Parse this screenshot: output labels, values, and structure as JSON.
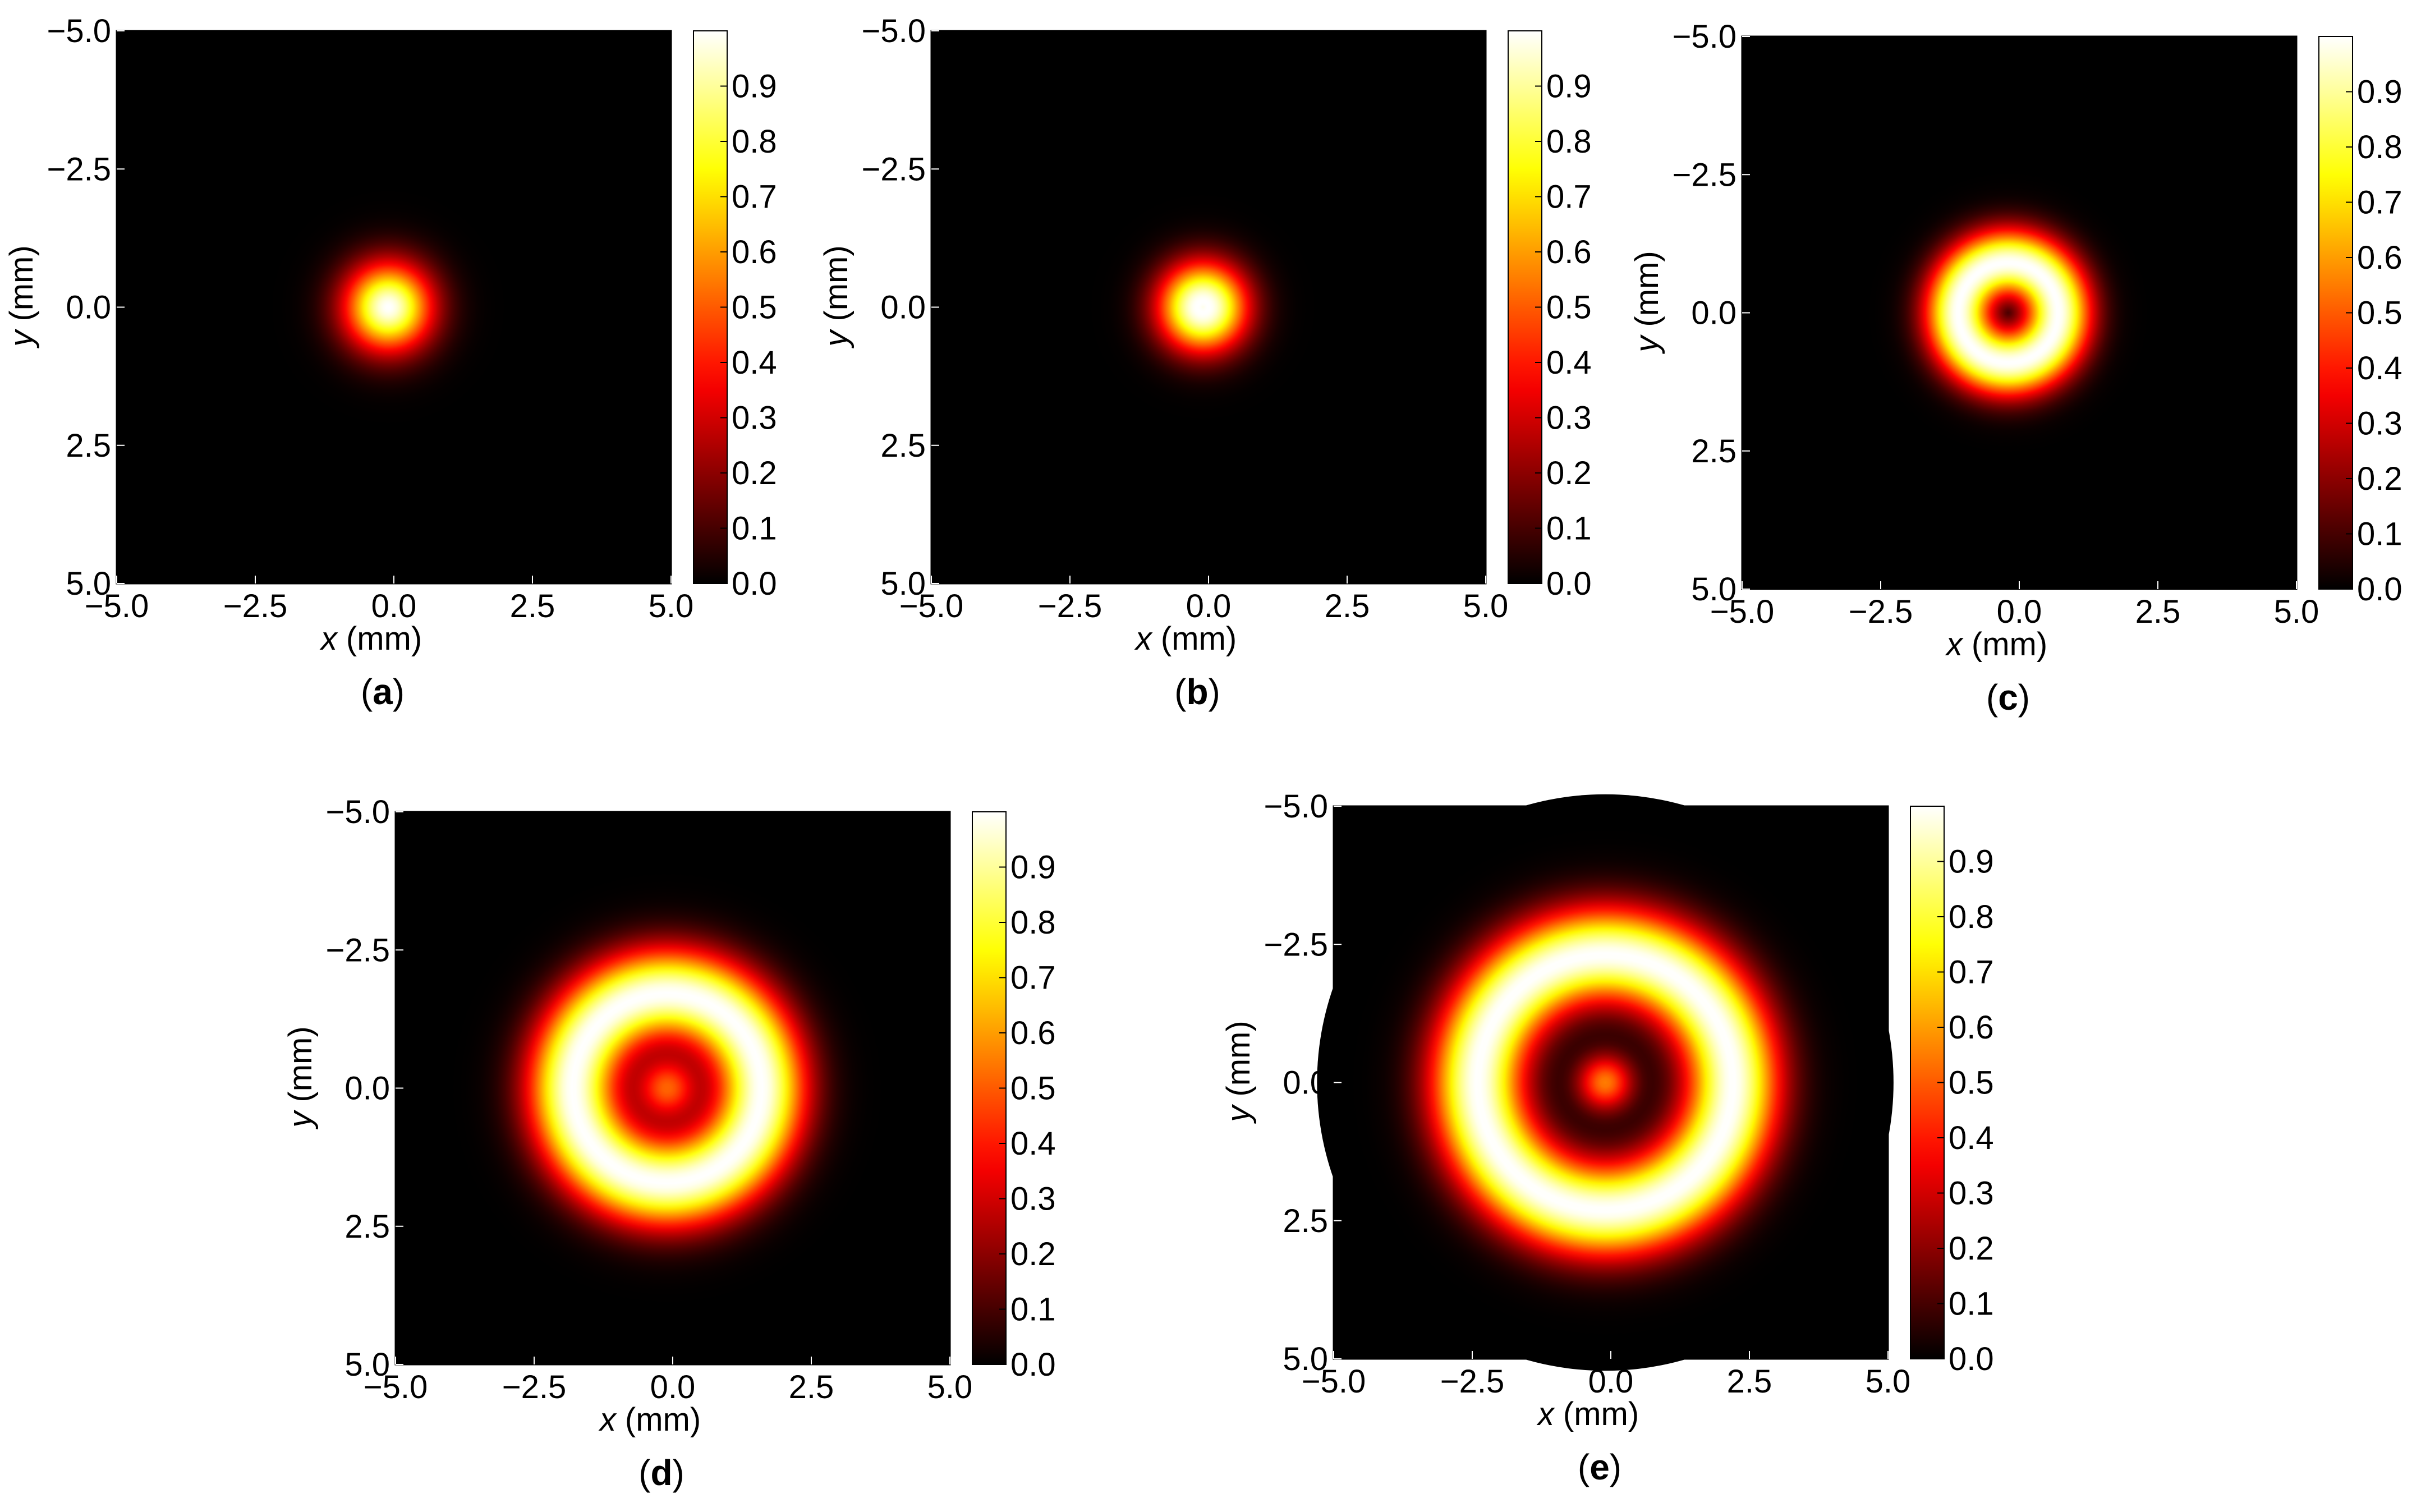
{
  "chart_data": [
    {
      "type": "heatmap",
      "panel_label": "a",
      "xlabel": "x (mm)",
      "ylabel": "y (mm)",
      "xlim": [
        -5.0,
        5.0
      ],
      "ylim": [
        -5.0,
        5.0
      ],
      "y_axis_inverted": true,
      "xticks": [
        "−5.0",
        "−2.5",
        "0.0",
        "2.5",
        "5.0"
      ],
      "yticks": [
        "−5.0",
        "−2.5",
        "0.0",
        "2.5",
        "5.0"
      ],
      "colorbar": {
        "colormap": "hot",
        "range": [
          0.0,
          1.0
        ],
        "ticks": [
          "0.0",
          "0.1",
          "0.2",
          "0.3",
          "0.4",
          "0.5",
          "0.6",
          "0.7",
          "0.8",
          "0.9"
        ]
      },
      "profile": {
        "shape": "gaussian spot",
        "center_mm": [
          -0.1,
          0.0
        ],
        "peak_radius_mm": 0.0,
        "width_mm": 1.1,
        "peak_value": 1.0
      }
    },
    {
      "type": "heatmap",
      "panel_label": "b",
      "xlabel": "x (mm)",
      "ylabel": "y (mm)",
      "xlim": [
        -5.0,
        5.0
      ],
      "ylim": [
        -5.0,
        5.0
      ],
      "y_axis_inverted": true,
      "xticks": [
        "−5.0",
        "−2.5",
        "0.0",
        "2.5",
        "5.0"
      ],
      "yticks": [
        "−5.0",
        "−2.5",
        "0.0",
        "2.5",
        "5.0"
      ],
      "colorbar": {
        "colormap": "hot",
        "range": [
          0.0,
          1.0
        ],
        "ticks": [
          "0.0",
          "0.1",
          "0.2",
          "0.3",
          "0.4",
          "0.5",
          "0.6",
          "0.7",
          "0.8",
          "0.9"
        ]
      },
      "profile": {
        "shape": "gaussian spot",
        "center_mm": [
          -0.1,
          0.0
        ],
        "peak_radius_mm": 0.1,
        "width_mm": 1.0,
        "peak_value": 1.0
      }
    },
    {
      "type": "heatmap",
      "panel_label": "c",
      "xlabel": "x (mm)",
      "ylabel": "y (mm)",
      "xlim": [
        -5.0,
        5.0
      ],
      "ylim": [
        -5.0,
        5.0
      ],
      "y_axis_inverted": true,
      "xticks": [
        "−5.0",
        "−2.5",
        "0.0",
        "2.5",
        "5.0"
      ],
      "yticks": [
        "−5.0",
        "−2.5",
        "0.0",
        "2.5",
        "5.0"
      ],
      "colorbar": {
        "colormap": "hot",
        "range": [
          0.0,
          1.0
        ],
        "ticks": [
          "0.0",
          "0.1",
          "0.2",
          "0.3",
          "0.4",
          "0.5",
          "0.6",
          "0.7",
          "0.8",
          "0.9"
        ]
      },
      "profile": {
        "shape": "ring",
        "center_mm": [
          -0.2,
          0.0
        ],
        "peak_radius_mm": 0.9,
        "width_mm": 0.85,
        "peak_value": 1.0
      }
    },
    {
      "type": "heatmap",
      "panel_label": "d",
      "xlabel": "x (mm)",
      "ylabel": "y (mm)",
      "xlim": [
        -5.0,
        5.0
      ],
      "ylim": [
        -5.0,
        5.0
      ],
      "y_axis_inverted": true,
      "xticks": [
        "−5.0",
        "−2.5",
        "0.0",
        "2.5",
        "5.0"
      ],
      "yticks": [
        "−5.0",
        "−2.5",
        "0.0",
        "2.5",
        "5.0"
      ],
      "colorbar": {
        "colormap": "hot",
        "range": [
          0.0,
          1.0
        ],
        "ticks": [
          "0.0",
          "0.1",
          "0.2",
          "0.3",
          "0.4",
          "0.5",
          "0.6",
          "0.7",
          "0.8",
          "0.9"
        ]
      },
      "profile": {
        "shape": "ring",
        "center_mm": [
          -0.1,
          0.0
        ],
        "peak_radius_mm": 1.7,
        "width_mm": 1.15,
        "peak_value": 1.0,
        "center_value": 0.5
      }
    },
    {
      "type": "heatmap",
      "panel_label": "e",
      "xlabel": "x (mm)",
      "ylabel": "y (mm)",
      "xlim": [
        -5.0,
        5.0
      ],
      "ylim": [
        -5.0,
        5.0
      ],
      "y_axis_inverted": true,
      "xticks": [
        "−5.0",
        "−2.5",
        "0.0",
        "2.5",
        "5.0"
      ],
      "yticks": [
        "−5.0",
        "−2.5",
        "0.0",
        "2.5",
        "5.0"
      ],
      "colorbar": {
        "colormap": "hot",
        "range": [
          0.0,
          1.0
        ],
        "ticks": [
          "0.0",
          "0.1",
          "0.2",
          "0.3",
          "0.4",
          "0.5",
          "0.6",
          "0.7",
          "0.8",
          "0.9"
        ]
      },
      "profile": {
        "shape": "ring",
        "center_mm": [
          -0.1,
          0.0
        ],
        "peak_radius_mm": 2.3,
        "width_mm": 1.2,
        "peak_value": 1.0,
        "center_value": 0.55
      }
    }
  ]
}
